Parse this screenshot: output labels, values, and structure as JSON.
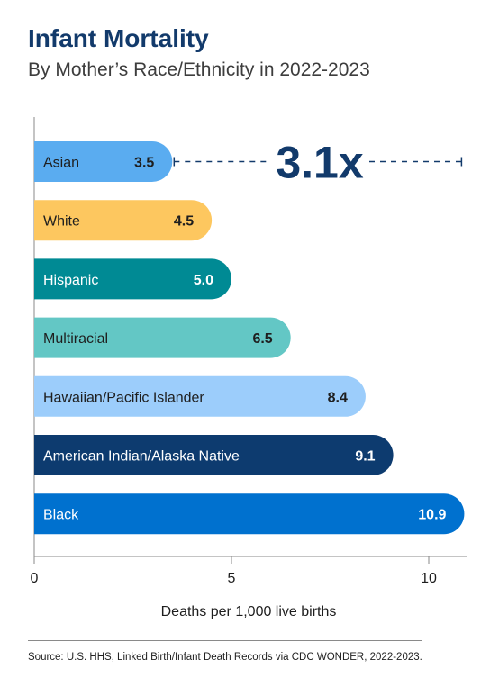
{
  "title": "Infant Mortality",
  "subtitle": "By Mother’s Race/Ethnicity in 2022-2023",
  "source": "Source: U.S. HHS, Linked Birth/Infant Death Records via CDC WONDER, 2022-2023.",
  "callout": "3.1x",
  "chart_data": {
    "type": "bar",
    "orientation": "horizontal",
    "categories": [
      "Asian",
      "White",
      "Hispanic",
      "Multiracial",
      "Hawaiian/Pacific Islander",
      "American Indian/Alaska Native",
      "Black"
    ],
    "values": [
      3.5,
      4.5,
      5.0,
      6.5,
      8.4,
      9.1,
      10.9
    ],
    "value_labels": [
      "3.5",
      "4.5",
      "5.0",
      "6.5",
      "8.4",
      "9.1",
      "10.9"
    ],
    "colors": [
      "#5aacf0",
      "#fdc75f",
      "#008a94",
      "#63c7c5",
      "#9ccdfb",
      "#0d3b6f",
      "#0071cf"
    ],
    "label_colors": [
      "#1e1e1e",
      "#1e1e1e",
      "#ffffff",
      "#1e1e1e",
      "#1e1e1e",
      "#ffffff",
      "#ffffff"
    ],
    "xlabel": "Deaths per 1,000 live births",
    "ylabel": "",
    "xlim": [
      0,
      11
    ],
    "xticks": [
      0,
      5,
      10
    ],
    "xtick_labels": [
      "0",
      "5",
      "10"
    ],
    "grid": false,
    "annotation": {
      "text": "3.1x",
      "from": 3.5,
      "to": 10.9,
      "color": "#123a6b"
    }
  }
}
